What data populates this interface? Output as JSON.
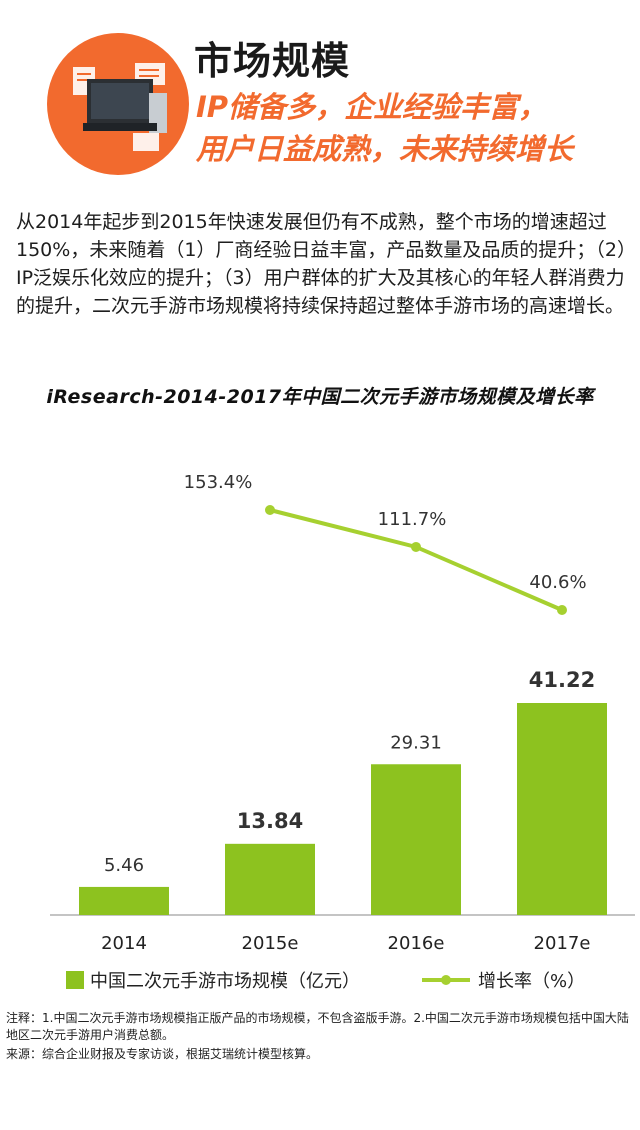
{
  "header": {
    "title": "市场规模",
    "subtitle_line1": "IP储备多，企业经验丰富，",
    "subtitle_line2": "用户日益成熟，未来持续增长",
    "badge_color": "#f26a2e"
  },
  "intro": "从2014年起步到2015年快速发展但仍有不成熟，整个市场的增速超过150%，未来随着（1）厂商经验日益丰富，产品数量及品质的提升；（2）IP泛娱乐化效应的提升；（3）用户群体的扩大及其核心的年轻人群消费力的提升，二次元手游市场规模将持续保持超过整体手游市场的高速增长。",
  "chart_data": {
    "type": "bar",
    "title": "iResearch-2014-2017年中国二次元手游市场规模及增长率",
    "categories": [
      "2014",
      "2015e",
      "2016e",
      "2017e"
    ],
    "series": [
      {
        "name": "中国二次元手游市场规模（亿元）",
        "type": "bar",
        "values": [
          5.46,
          13.84,
          29.31,
          41.22
        ],
        "labels": [
          "5.46",
          "13.84",
          "29.31",
          "41.22"
        ],
        "bold_labels": [
          false,
          true,
          false,
          true
        ],
        "color": "#8dc21f"
      },
      {
        "name": "增长率（%）",
        "type": "line",
        "values": [
          null,
          153.4,
          111.7,
          40.6
        ],
        "labels": [
          "",
          "153.4%",
          "111.7%",
          "40.6%"
        ],
        "color": "#a6d030"
      }
    ],
    "legend": "bottom",
    "grid": false
  },
  "notes": {
    "note_label": "注释：",
    "note_text": "1.中国二次元手游市场规模指正版产品的市场规模，不包含盗版手游。2.中国二次元手游市场规模包括中国大陆地区二次元手游用户消费总额。",
    "source_label": "来源：",
    "source_text": "综合企业财报及专家访谈，根据艾瑞统计模型核算。"
  }
}
